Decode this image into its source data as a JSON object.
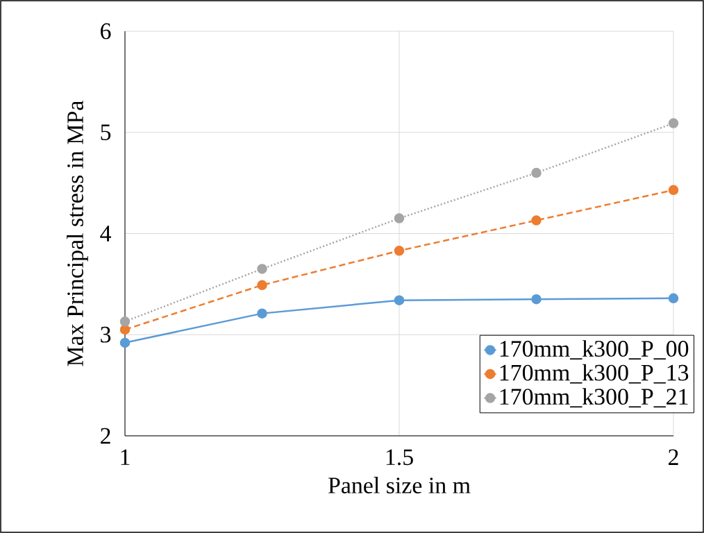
{
  "chart_data": {
    "type": "line",
    "xlabel": "Panel size in m",
    "ylabel": "Max Principal stress in MPa",
    "xlim": [
      1,
      2
    ],
    "xticks": [
      1,
      1.5,
      2
    ],
    "ylim": [
      2,
      6
    ],
    "yticks": [
      2,
      3,
      4,
      5,
      6
    ],
    "grid": true,
    "legend": "bottom right",
    "marker": "circle",
    "series": [
      {
        "name": "170mm_k300_P_00",
        "color": "#5b9bd5",
        "line_style": "solid",
        "x": [
          1,
          1.25,
          1.5,
          1.75,
          2
        ],
        "values": [
          2.92,
          3.21,
          3.34,
          3.35,
          3.36
        ]
      },
      {
        "name": "170mm_k300_P_13",
        "color": "#ed7d31",
        "line_style": "dashed",
        "x": [
          1,
          1.25,
          1.5,
          1.75,
          2
        ],
        "values": [
          3.05,
          3.49,
          3.83,
          4.13,
          4.43
        ]
      },
      {
        "name": "170mm_k300_P_21",
        "color": "#a5a5a5",
        "line_style": "dotted",
        "x": [
          1,
          1.25,
          1.5,
          1.75,
          2
        ],
        "values": [
          3.13,
          3.65,
          4.15,
          4.6,
          5.09
        ]
      }
    ]
  }
}
